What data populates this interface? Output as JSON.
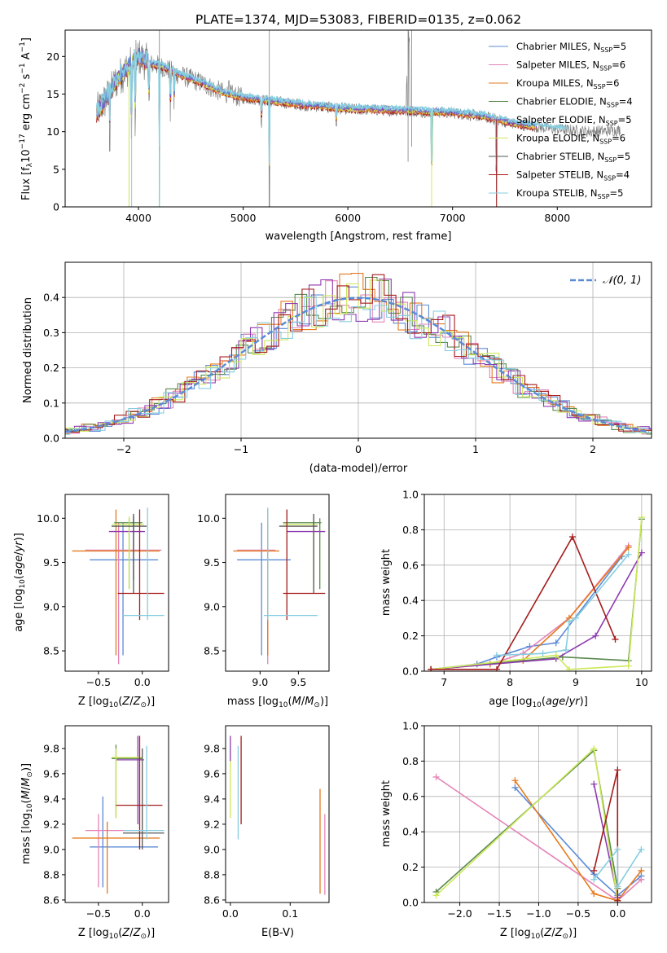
{
  "figure": {
    "title": "PLATE=1374, MJD=53083, FIBERID=0135, z=0.062",
    "fiber_info": {
      "plate": 1374,
      "mjd": 53083,
      "fiberid": "0135",
      "z": 0.062
    }
  },
  "colors": {
    "chabrier_miles": "#5b8bd6",
    "salpeter_miles": "#e584b8",
    "kroupa_miles": "#e57a1e",
    "chabrier_elodie": "#5a8a4e",
    "salpeter_elodie": "#8e3ab0",
    "kroupa_elodie": "#cde85a",
    "chabrier_stelib": "#555555",
    "salpeter_stelib": "#a61c1c",
    "kroupa_stelib": "#86cde0",
    "spectrum": "#808080",
    "model_main": "#6fd3d3",
    "gaussian": "#5b8bd6",
    "grid": "#b0b0b0"
  },
  "chart_data": [
    {
      "id": "spectrum",
      "type": "line",
      "xlabel": "wavelength [Angstrom, rest frame]",
      "ylabel": "Flux [f_λ10^-17 erg cm^-2 s^-1 A^-1]",
      "xlim": [
        3300,
        8900
      ],
      "ylim": [
        0,
        23.5
      ],
      "xticks": [
        4000,
        5000,
        6000,
        7000,
        8000
      ],
      "yticks": [
        0,
        5,
        10,
        15,
        20
      ],
      "grid": false,
      "legend_position": "top-right",
      "continuum": [
        [
          3600,
          12.5
        ],
        [
          3700,
          14.5
        ],
        [
          3800,
          17
        ],
        [
          3900,
          18.5
        ],
        [
          4000,
          20
        ],
        [
          4100,
          19
        ],
        [
          4200,
          18.8
        ],
        [
          4400,
          17.5
        ],
        [
          4600,
          16.5
        ],
        [
          4800,
          15.2
        ],
        [
          5000,
          14.5
        ],
        [
          5300,
          14
        ],
        [
          5600,
          13.5
        ],
        [
          6000,
          13
        ],
        [
          6500,
          12.8
        ],
        [
          7000,
          12.5
        ],
        [
          7300,
          12
        ],
        [
          7600,
          11
        ],
        [
          8000,
          10.3
        ],
        [
          8300,
          10
        ],
        [
          8600,
          10.2
        ]
      ],
      "series": [
        {
          "name": "Chabrier MILES, N_SSP=5",
          "color_key": "chabrier_miles"
        },
        {
          "name": "Salpeter MILES, N_SSP=6",
          "color_key": "salpeter_miles"
        },
        {
          "name": "Kroupa MILES, N_SSP=6",
          "color_key": "kroupa_miles"
        },
        {
          "name": "Chabrier ELODIE, N_SSP=4",
          "color_key": "chabrier_elodie"
        },
        {
          "name": "Salpeter ELODIE, N_SSP=5",
          "color_key": "salpeter_elodie"
        },
        {
          "name": "Kroupa ELODIE, N_SSP=6",
          "color_key": "kroupa_elodie"
        },
        {
          "name": "Chabrier STELIB, N_SSP=5",
          "color_key": "chabrier_stelib"
        },
        {
          "name": "Salpeter STELIB, N_SSP=4",
          "color_key": "salpeter_stelib"
        },
        {
          "name": "Kroupa STELIB, N_SSP=5",
          "color_key": "kroupa_stelib"
        }
      ]
    },
    {
      "id": "residuals",
      "type": "histogram",
      "xlabel": "(data-model)/error",
      "ylabel": "Normed distribution",
      "xlim": [
        -2.5,
        2.5
      ],
      "ylim": [
        0,
        0.5
      ],
      "xticks": [
        -2,
        -1,
        0,
        1,
        2
      ],
      "yticks": [
        0.0,
        0.1,
        0.2,
        0.3,
        0.4
      ],
      "grid": true,
      "legend_position": "top-right",
      "legend_label": "N(0,1)",
      "gaussian": {
        "mu": 0,
        "sigma": 1
      }
    },
    {
      "id": "age_vs_Z",
      "type": "errorbar",
      "xlabel": "Z [log10(Z/Z_sun)]",
      "ylabel": "age  [log10(age/yr)]",
      "xlim": [
        -0.88,
        0.3
      ],
      "ylim": [
        8.27,
        10.27
      ],
      "xticks": [
        -0.5,
        0.0
      ],
      "yticks": [
        8.5,
        9.0,
        9.5,
        10.0
      ],
      "grid": false,
      "points": [
        {
          "s": "chabrier_miles",
          "x": -0.22,
          "y": 9.53,
          "xlo": -0.6,
          "xhi": 0.18,
          "ylo": 8.45,
          "yhi": 9.95
        },
        {
          "s": "salpeter_miles",
          "x": -0.27,
          "y": 9.64,
          "xlo": -0.65,
          "xhi": 0.22,
          "ylo": 8.35,
          "yhi": 9.95
        },
        {
          "s": "kroupa_miles",
          "x": -0.3,
          "y": 9.63,
          "xlo": -0.8,
          "xhi": 0.2,
          "ylo": 8.45,
          "yhi": 10.1
        },
        {
          "s": "chabrier_elodie",
          "x": -0.15,
          "y": 9.95,
          "xlo": -0.32,
          "xhi": 0.0,
          "ylo": 9.2,
          "yhi": 10.0
        },
        {
          "s": "salpeter_elodie",
          "x": -0.1,
          "y": 9.85,
          "xlo": -0.38,
          "xhi": 0.03,
          "ylo": 9.3,
          "yhi": 10.02
        },
        {
          "s": "kroupa_elodie",
          "x": -0.15,
          "y": 9.93,
          "xlo": -0.35,
          "xhi": 0.02,
          "ylo": 9.2,
          "yhi": 10.02
        },
        {
          "s": "chabrier_stelib",
          "x": -0.1,
          "y": 9.91,
          "xlo": -0.35,
          "xhi": 0.05,
          "ylo": 9.15,
          "yhi": 10.05
        },
        {
          "s": "salpeter_stelib",
          "x": -0.03,
          "y": 9.15,
          "xlo": -0.28,
          "xhi": 0.25,
          "ylo": 8.85,
          "yhi": 10.1
        },
        {
          "s": "kroupa_stelib",
          "x": 0.06,
          "y": 8.9,
          "xlo": -0.22,
          "xhi": 0.25,
          "ylo": 8.85,
          "yhi": 10.12
        }
      ]
    },
    {
      "id": "age_vs_mass",
      "type": "errorbar",
      "xlabel": "mass [log10(M/M_sun)]",
      "xlim": [
        8.55,
        9.9
      ],
      "ylim": [
        8.27,
        10.27
      ],
      "xticks": [
        9.0,
        9.5
      ],
      "yticks": [
        8.5,
        9.0,
        9.5,
        10.0
      ],
      "grid": false,
      "points": [
        {
          "s": "chabrier_miles",
          "x": 9.02,
          "y": 9.53,
          "xlo": 8.7,
          "xhi": 9.4,
          "ylo": 8.45,
          "yhi": 9.95
        },
        {
          "s": "salpeter_miles",
          "x": 9.1,
          "y": 9.64,
          "xlo": 8.7,
          "xhi": 9.2,
          "ylo": 8.35,
          "yhi": 9.95
        },
        {
          "s": "kroupa_miles",
          "x": 9.1,
          "y": 9.63,
          "xlo": 8.65,
          "xhi": 9.25,
          "ylo": 8.45,
          "yhi": 10.1
        },
        {
          "s": "chabrier_elodie",
          "x": 9.78,
          "y": 9.95,
          "xlo": 9.3,
          "xhi": 9.8,
          "ylo": 9.2,
          "yhi": 10.0
        },
        {
          "s": "salpeter_elodie",
          "x": 9.7,
          "y": 9.85,
          "xlo": 9.35,
          "xhi": 9.85,
          "ylo": 9.3,
          "yhi": 10.02
        },
        {
          "s": "kroupa_elodie",
          "x": 9.7,
          "y": 9.93,
          "xlo": 9.3,
          "xhi": 9.75,
          "ylo": 9.2,
          "yhi": 10.02
        },
        {
          "s": "chabrier_stelib",
          "x": 9.7,
          "y": 9.91,
          "xlo": 9.25,
          "xhi": 9.75,
          "ylo": 9.15,
          "yhi": 10.05
        },
        {
          "s": "salpeter_stelib",
          "x": 9.35,
          "y": 9.15,
          "xlo": 9.3,
          "xhi": 9.85,
          "ylo": 8.85,
          "yhi": 10.1
        },
        {
          "s": "kroupa_stelib",
          "x": 9.1,
          "y": 8.9,
          "xlo": 9.05,
          "xhi": 9.75,
          "ylo": 8.85,
          "yhi": 10.12
        }
      ]
    },
    {
      "id": "mass_weight_vs_age",
      "type": "line",
      "xlabel": "age  [log10(age/yr)]",
      "ylabel": "mass weight",
      "xlim": [
        6.7,
        10.15
      ],
      "ylim": [
        0,
        1.0
      ],
      "xticks": [
        7,
        8,
        9,
        10
      ],
      "yticks": [
        0.0,
        0.2,
        0.4,
        0.6,
        0.8,
        1.0
      ],
      "grid": true,
      "series": [
        {
          "s": "chabrier_miles",
          "x": [
            6.8,
            7.5,
            7.8,
            8.3,
            8.7,
            9.7
          ],
          "y": [
            0.01,
            0.04,
            0.08,
            0.14,
            0.16,
            0.65
          ]
        },
        {
          "s": "salpeter_miles",
          "x": [
            6.8,
            7.7,
            8.2,
            8.9,
            9.8
          ],
          "y": [
            0.01,
            0.04,
            0.1,
            0.3,
            0.71
          ]
        },
        {
          "s": "kroupa_miles",
          "x": [
            6.8,
            7.7,
            8.2,
            8.9,
            9.8
          ],
          "y": [
            0.01,
            0.04,
            0.06,
            0.3,
            0.7
          ]
        },
        {
          "s": "chabrier_elodie",
          "x": [
            6.8,
            8.8,
            9.8,
            10.0
          ],
          "y": [
            0.01,
            0.08,
            0.06,
            0.86
          ]
        },
        {
          "s": "salpeter_elodie",
          "x": [
            6.8,
            8.7,
            9.3,
            10.0
          ],
          "y": [
            0.01,
            0.07,
            0.2,
            0.67
          ]
        },
        {
          "s": "kroupa_elodie",
          "x": [
            6.8,
            8.7,
            8.9,
            9.8,
            10.0
          ],
          "y": [
            0.01,
            0.09,
            0.01,
            0.03,
            0.87
          ]
        },
        {
          "s": "salpeter_stelib",
          "x": [
            6.8,
            7.8,
            8.95,
            9.6
          ],
          "y": [
            0.01,
            0.01,
            0.76,
            0.18
          ]
        },
        {
          "s": "kroupa_stelib",
          "x": [
            7.8,
            8.5,
            8.85,
            8.9,
            9.0,
            9.8
          ],
          "y": [
            0.09,
            0.1,
            0.12,
            0.28,
            0.3,
            0.66
          ]
        }
      ]
    },
    {
      "id": "mass_vs_Z",
      "type": "errorbar",
      "xlabel": "Z [log10(Z/Z_sun)]",
      "ylabel": "mass [log10(M/M_sun)]",
      "xlim": [
        -0.88,
        0.3
      ],
      "ylim": [
        8.58,
        9.98
      ],
      "xticks": [
        -0.5,
        0.0
      ],
      "yticks": [
        8.6,
        8.8,
        9.0,
        9.2,
        9.4,
        9.6,
        9.8
      ],
      "grid": false,
      "points": [
        {
          "s": "chabrier_miles",
          "x": -0.45,
          "y": 9.02,
          "xlo": -0.6,
          "xhi": 0.18,
          "ylo": 8.7,
          "yhi": 9.42
        },
        {
          "s": "salpeter_miles",
          "x": -0.5,
          "y": 9.15,
          "xlo": -0.65,
          "xhi": 0.05,
          "ylo": 8.7,
          "yhi": 9.28
        },
        {
          "s": "kroupa_miles",
          "x": -0.4,
          "y": 9.09,
          "xlo": -0.8,
          "xhi": 0.2,
          "ylo": 8.65,
          "yhi": 9.22
        },
        {
          "s": "chabrier_elodie",
          "x": -0.3,
          "y": 9.72,
          "xlo": -0.35,
          "xhi": 0.0,
          "ylo": 9.25,
          "yhi": 9.83
        },
        {
          "s": "salpeter_elodie",
          "x": -0.05,
          "y": 9.71,
          "xlo": -0.3,
          "xhi": 0.02,
          "ylo": 9.2,
          "yhi": 9.9
        },
        {
          "s": "kroupa_elodie",
          "x": -0.3,
          "y": 9.73,
          "xlo": -0.35,
          "xhi": 0.0,
          "ylo": 9.25,
          "yhi": 9.8
        },
        {
          "s": "chabrier_stelib",
          "x": 0.0,
          "y": 9.13,
          "xlo": -0.22,
          "xhi": 0.25,
          "ylo": 9.0,
          "yhi": 9.8
        },
        {
          "s": "salpeter_stelib",
          "x": -0.03,
          "y": 9.35,
          "xlo": -0.3,
          "xhi": 0.23,
          "ylo": 9.0,
          "yhi": 9.9
        },
        {
          "s": "kroupa_stelib",
          "x": 0.05,
          "y": 9.15,
          "xlo": -0.22,
          "xhi": 0.25,
          "ylo": 9.08,
          "yhi": 9.82
        }
      ]
    },
    {
      "id": "mass_vs_ebv",
      "type": "errorbar",
      "xlabel": "E(B-V)",
      "xlim": [
        -0.008,
        0.165
      ],
      "ylim": [
        8.58,
        9.98
      ],
      "xticks": [
        0.0,
        0.1
      ],
      "yticks": [
        8.6,
        8.8,
        9.0,
        9.2,
        9.4,
        9.6,
        9.8
      ],
      "grid": false,
      "points": [
        {
          "s": "kroupa_elodie",
          "x": 0.0,
          "y": 9.72,
          "xlo": 0.0,
          "xhi": 0.0,
          "ylo": 9.25,
          "yhi": 9.8
        },
        {
          "s": "salpeter_elodie",
          "x": 0.0,
          "y": 9.85,
          "xlo": 0.0,
          "xhi": 0.0,
          "ylo": 9.7,
          "yhi": 9.9
        },
        {
          "s": "kroupa_stelib",
          "x": 0.013,
          "y": 9.2,
          "xlo": 0.013,
          "xhi": 0.013,
          "ylo": 9.08,
          "yhi": 9.82
        },
        {
          "s": "salpeter_stelib",
          "x": 0.018,
          "y": 9.6,
          "xlo": 0.018,
          "xhi": 0.018,
          "ylo": 9.2,
          "yhi": 9.9
        },
        {
          "s": "kroupa_miles",
          "x": 0.15,
          "y": 9.1,
          "xlo": 0.15,
          "xhi": 0.15,
          "ylo": 8.65,
          "yhi": 9.48
        },
        {
          "s": "salpeter_miles",
          "x": 0.158,
          "y": 9.0,
          "xlo": 0.158,
          "xhi": 0.158,
          "ylo": 8.64,
          "yhi": 9.28
        }
      ]
    },
    {
      "id": "mass_weight_vs_Z",
      "type": "line",
      "xlabel": "Z [log10(Z/Z_sun)]",
      "ylabel": "mass weight",
      "xlim": [
        -2.45,
        0.43
      ],
      "ylim": [
        0,
        1.0
      ],
      "xticks": [
        -2.0,
        -1.5,
        -1.0,
        -0.5,
        0.0
      ],
      "yticks": [
        0.0,
        0.2,
        0.4,
        0.6,
        0.8,
        1.0
      ],
      "grid": true,
      "series": [
        {
          "s": "chabrier_miles",
          "x": [
            -1.3,
            -0.3,
            0.0,
            0.3
          ],
          "y": [
            0.65,
            0.16,
            0.04,
            0.15
          ]
        },
        {
          "s": "salpeter_miles",
          "x": [
            -2.3,
            0.0,
            0.3
          ],
          "y": [
            0.71,
            0.01,
            0.13
          ]
        },
        {
          "s": "kroupa_miles",
          "x": [
            -1.3,
            -0.3,
            0.0,
            0.3
          ],
          "y": [
            0.69,
            0.05,
            0.01,
            0.18
          ]
        },
        {
          "s": "chabrier_elodie",
          "x": [
            -2.3,
            -0.3,
            0.0
          ],
          "y": [
            0.06,
            0.86,
            0.08
          ]
        },
        {
          "s": "salpeter_elodie",
          "x": [
            -0.3,
            0.0
          ],
          "y": [
            0.67,
            0.03
          ]
        },
        {
          "s": "kroupa_elodie",
          "x": [
            -2.3,
            -0.3,
            0.0
          ],
          "y": [
            0.04,
            0.87,
            0.01
          ]
        },
        {
          "s": "salpeter_stelib",
          "x": [
            -0.3,
            0.0,
            0.0
          ],
          "y": [
            0.18,
            0.75,
            0.01
          ]
        },
        {
          "s": "kroupa_stelib",
          "x": [
            -0.3,
            0.0,
            0.0,
            0.3
          ],
          "y": [
            0.13,
            0.3,
            0.09,
            0.3
          ]
        }
      ]
    }
  ]
}
